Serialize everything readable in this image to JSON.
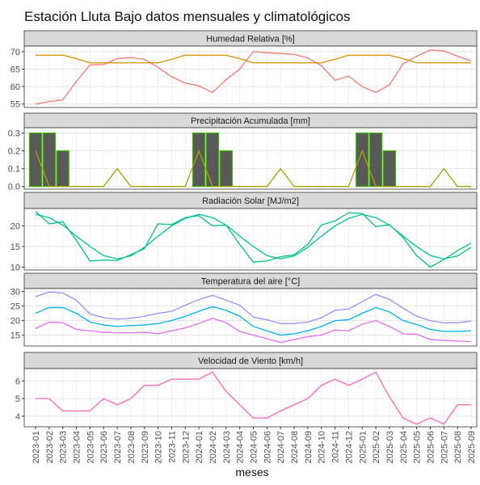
{
  "chart_data": {
    "type": "facet",
    "title": "Estación Lluta Bajo datos mensuales y climatológicos",
    "x_label": "meses",
    "grid": true,
    "categories": [
      "2023-01",
      "2023-02",
      "2023-03",
      "2023-04",
      "2023-05",
      "2023-06",
      "2023-07",
      "2023-08",
      "2023-09",
      "2023-10",
      "2023-11",
      "2023-12",
      "2024-01",
      "2024-02",
      "2024-03",
      "2024-04",
      "2024-05",
      "2024-06",
      "2024-07",
      "2024-08",
      "2024-09",
      "2024-10",
      "2024-11",
      "2024-12",
      "2025-01",
      "2025-02",
      "2025-03",
      "2025-04",
      "2025-05",
      "2025-06",
      "2025-07",
      "2025-08",
      "2025-09"
    ],
    "panels": [
      {
        "title": "Humedad Relativa [%]",
        "ylim": [
          54,
          71.6
        ],
        "yticks": [
          55,
          60,
          65,
          70
        ],
        "series": [
          {
            "type": "line",
            "color": "#F8766D",
            "values": [
              55,
              55.7,
              56.2,
              61.5,
              66.2,
              66.3,
              68,
              68.3,
              67.8,
              65.5,
              62.8,
              61,
              60.2,
              58.3,
              62,
              65,
              70,
              69.7,
              69.5,
              69.2,
              68.2,
              66,
              61.8,
              63,
              60,
              58.3,
              60.5,
              66.5,
              68.7,
              70.5,
              70.2,
              68.7,
              67.4
            ]
          },
          {
            "type": "line",
            "color": "#D89000",
            "values": [
              69,
              69,
              69,
              68,
              66.8,
              66.8,
              66.8,
              66.8,
              66.8,
              66.8,
              67.8,
              69,
              69,
              69,
              69,
              68,
              66.8,
              66.8,
              66.8,
              66.8,
              66.8,
              66.8,
              67.8,
              69,
              69,
              69,
              69,
              68,
              66.8,
              66.8,
              66.8,
              66.8,
              66.8
            ]
          }
        ]
      },
      {
        "title": "Precipitación Acumulada [mm]",
        "ylim": [
          -0.015,
          0.33
        ],
        "yticks": [
          {
            "value": 0,
            "label": "0.0"
          },
          {
            "value": 0.1,
            "label": "0.1"
          },
          {
            "value": 0.2,
            "label": "0.2"
          },
          {
            "value": 0.3,
            "label": "0.3"
          }
        ],
        "series": [
          {
            "type": "bar",
            "color": "#595959",
            "border": "#39B600",
            "values": [
              0.3,
              0.3,
              0.2,
              0,
              0,
              0,
              0,
              0,
              0,
              0,
              0,
              0,
              0.3,
              0.3,
              0.2,
              0,
              0,
              0,
              0,
              0,
              0,
              0,
              0,
              0,
              0.3,
              0.3,
              0.2,
              0,
              0,
              0,
              0,
              0,
              0
            ]
          },
          {
            "type": "line",
            "color": "#A3A500",
            "values": [
              0.2,
              0,
              0,
              0,
              0,
              0,
              0.1,
              0,
              0,
              0,
              0,
              0,
              0.2,
              0,
              0,
              0,
              0,
              0,
              0.1,
              0,
              0,
              0,
              0,
              0,
              0.2,
              0,
              0,
              0,
              0,
              0,
              0.1,
              0,
              0
            ]
          }
        ]
      },
      {
        "title": "Radiación Solar [MJ/m2]",
        "ylim": [
          9.3,
          24.2
        ],
        "yticks": [
          10,
          15,
          20
        ],
        "series": [
          {
            "type": "line",
            "color": "#00BF7D",
            "values": [
              23.5,
              20.5,
              21,
              16.5,
              11.5,
              11.7,
              11.6,
              13,
              14.5,
              20.5,
              20.3,
              22,
              22.5,
              20,
              20.2,
              15.5,
              11.2,
              11.5,
              12.5,
              13,
              15.5,
              20.2,
              21.2,
              23.2,
              23,
              19.8,
              20.3,
              17.2,
              12.8,
              10,
              11.8,
              14,
              15.8
            ]
          },
          {
            "type": "line",
            "color": "#00C0A0",
            "values": [
              22.8,
              22,
              20.2,
              17.5,
              15,
              12.8,
              12,
              12.7,
              14.8,
              17.5,
              20,
              21.8,
              22.8,
              22,
              20.2,
              17.5,
              15,
              12.8,
              12,
              12.7,
              14.8,
              17.5,
              20,
              21.8,
              22.8,
              22,
              20.2,
              17.5,
              15,
              12.8,
              12,
              12.7,
              14.8
            ]
          }
        ]
      },
      {
        "title": "Temperatura del aire [°C]",
        "ylim": [
          11.3,
          31
        ],
        "yticks": [
          15,
          20,
          25,
          30
        ],
        "series": [
          {
            "type": "line",
            "color": "#9590FF",
            "values": [
              28.2,
              29.8,
              29.5,
              27,
              22.3,
              21,
              20.5,
              20.8,
              21.5,
              22.5,
              23.2,
              25.3,
              27.2,
              28.7,
              27,
              25.3,
              21.2,
              20.3,
              19,
              19,
              19.5,
              21,
              23.5,
              24,
              26.5,
              29,
              27.3,
              24.3,
              21.5,
              20,
              19.2,
              19.3,
              19.8
            ]
          },
          {
            "type": "line",
            "color": "#00B0F6",
            "values": [
              22.5,
              24.5,
              24.5,
              22.5,
              19.5,
              18.5,
              18,
              18.3,
              18.5,
              19,
              20,
              21.5,
              23.2,
              24.8,
              23.5,
              21.5,
              18,
              16.5,
              15,
              15.5,
              16.5,
              18,
              20,
              20.3,
              22.5,
              24.5,
              23,
              20,
              18.7,
              17,
              16.3,
              16.3,
              16.5
            ]
          },
          {
            "type": "line",
            "color": "#E76BF3",
            "values": [
              17.3,
              19.5,
              19.3,
              17,
              16.5,
              16,
              15.8,
              15.8,
              16,
              15.5,
              16.5,
              17.5,
              19,
              20.8,
              19.3,
              16.3,
              15,
              13.8,
              12.5,
              13.5,
              14.5,
              15,
              16.8,
              16.5,
              18.8,
              20,
              18,
              15.5,
              15.3,
              13.5,
              13.2,
              13,
              12.8
            ]
          }
        ]
      },
      {
        "title": "Velocidad de Viento [km/h]",
        "ylim": [
          3.4,
          6.7
        ],
        "yticks": [
          4,
          5,
          6
        ],
        "series": [
          {
            "type": "line",
            "color": "#FF62BC",
            "values": [
              5,
              5,
              4.3,
              4.3,
              4.3,
              5,
              4.65,
              5,
              5.75,
              5.75,
              6.1,
              6.1,
              6.1,
              6.5,
              5.4,
              4.65,
              3.9,
              3.9,
              4.3,
              4.65,
              5,
              5.75,
              6.1,
              5.75,
              6.1,
              6.5,
              5.1,
              3.9,
              3.55,
              3.9,
              3.55,
              4.65,
              4.65
            ]
          }
        ]
      }
    ]
  }
}
